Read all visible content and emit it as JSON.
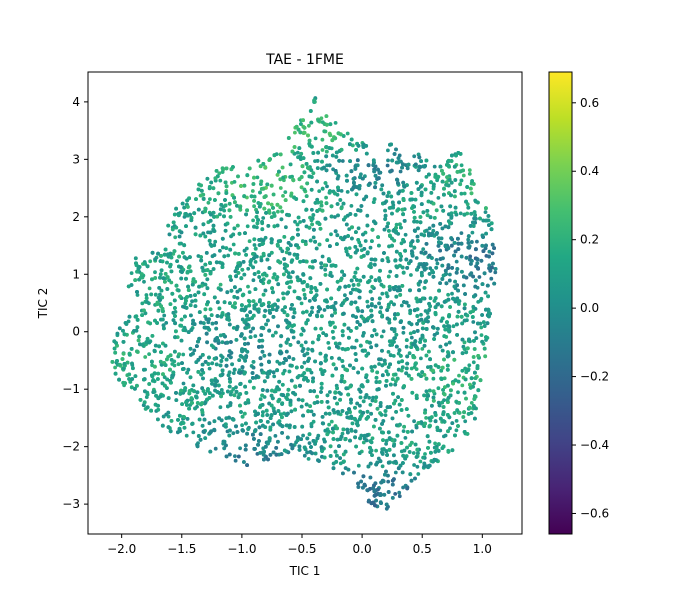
{
  "chart_data": {
    "type": "scatter",
    "title": "TAE - 1FME",
    "xlabel": "TIC 1",
    "ylabel": "TIC 2",
    "xlim": [
      -2.28,
      1.33
    ],
    "ylim": [
      -3.52,
      4.52
    ],
    "x_ticks": [
      -2.0,
      -1.5,
      -1.0,
      -0.5,
      0.0,
      0.5,
      1.0
    ],
    "x_tick_labels": [
      "−2.0",
      "−1.5",
      "−1.0",
      "−0.5",
      "0.0",
      "0.5",
      "1.0"
    ],
    "y_ticks": [
      -3,
      -2,
      -1,
      0,
      1,
      2,
      3,
      4
    ],
    "y_tick_labels": [
      "−3",
      "−2",
      "−1",
      "0",
      "1",
      "2",
      "3",
      "4"
    ],
    "colormap": "viridis",
    "colorbar": {
      "range": [
        -0.66,
        0.69
      ],
      "ticks": [
        -0.6,
        -0.4,
        -0.2,
        0.0,
        0.2,
        0.4,
        0.6
      ],
      "tick_labels": [
        "−0.6",
        "−0.4",
        "−0.2",
        "0.0",
        "0.2",
        "0.4",
        "0.6"
      ]
    },
    "grid": false,
    "point_cloud": {
      "x_extent": [
        -2.12,
        1.15
      ],
      "y_extent": [
        -3.15,
        4.18
      ],
      "dominant_value": 0.1,
      "regions": [
        {
          "x": -1.75,
          "y": 0.95,
          "value": 0.15
        },
        {
          "x": -0.3,
          "y": 3.45,
          "value": 0.35
        },
        {
          "x": -0.8,
          "y": 2.6,
          "value": 0.35
        },
        {
          "x": 0.85,
          "y": 2.6,
          "value": 0.25
        },
        {
          "x": 0.1,
          "y": 2.9,
          "value": -0.2
        },
        {
          "x": 1.0,
          "y": 1.3,
          "value": -0.25
        },
        {
          "x": 0.15,
          "y": -2.9,
          "value": -0.3
        },
        {
          "x": -1.0,
          "y": -2.2,
          "value": -0.2
        },
        {
          "x": -1.85,
          "y": -0.4,
          "value": 0.2
        },
        {
          "x": -1.0,
          "y": -0.3,
          "value": -0.1
        },
        {
          "x": 0.95,
          "y": -0.8,
          "value": 0.25
        },
        {
          "x": 0.2,
          "y": 0.2,
          "value": 0.05
        }
      ]
    }
  }
}
